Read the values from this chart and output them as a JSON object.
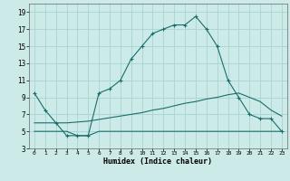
{
  "xlabel": "Humidex (Indice chaleur)",
  "bg_color": "#cceae8",
  "grid_color": "#a8d4d2",
  "line_color": "#1a6e6a",
  "main_x": [
    0,
    1,
    2,
    3,
    4,
    5,
    6,
    7,
    8,
    9,
    10,
    11,
    12,
    13,
    14,
    15,
    16,
    17,
    18,
    19,
    20,
    21,
    22,
    23
  ],
  "main_y": [
    9.5,
    7.5,
    6.0,
    4.5,
    4.5,
    4.5,
    9.5,
    10.0,
    11.0,
    13.5,
    15.0,
    16.5,
    17.0,
    17.5,
    17.5,
    18.5,
    17.0,
    15.0,
    11.0,
    9.0,
    7.0,
    6.5,
    6.5,
    5.0
  ],
  "upper_flat_x": [
    0,
    1,
    2,
    3,
    4,
    5,
    6,
    7,
    8,
    9,
    10,
    11,
    12,
    13,
    14,
    15,
    16,
    17,
    18,
    19,
    20,
    21,
    22,
    23
  ],
  "upper_flat_y": [
    6.0,
    6.0,
    6.0,
    6.0,
    6.1,
    6.2,
    6.4,
    6.6,
    6.8,
    7.0,
    7.2,
    7.5,
    7.7,
    8.0,
    8.3,
    8.5,
    8.8,
    9.0,
    9.3,
    9.5,
    9.0,
    8.5,
    7.5,
    6.8
  ],
  "lower_flat_x": [
    0,
    1,
    2,
    3,
    4,
    5,
    6,
    7,
    8,
    9,
    10,
    11,
    12,
    13,
    14,
    15,
    16,
    17,
    18,
    19,
    20,
    21,
    22,
    23
  ],
  "lower_flat_y": [
    5.0,
    5.0,
    5.0,
    5.0,
    4.5,
    4.5,
    5.0,
    5.0,
    5.0,
    5.0,
    5.0,
    5.0,
    5.0,
    5.0,
    5.0,
    5.0,
    5.0,
    5.0,
    5.0,
    5.0,
    5.0,
    5.0,
    5.0,
    5.0
  ],
  "xlim": [
    -0.5,
    23.5
  ],
  "ylim": [
    3,
    20
  ],
  "yticks": [
    3,
    5,
    7,
    9,
    11,
    13,
    15,
    17,
    19
  ],
  "xticks": [
    0,
    1,
    2,
    3,
    4,
    5,
    6,
    7,
    8,
    9,
    10,
    11,
    12,
    13,
    14,
    15,
    16,
    17,
    18,
    19,
    20,
    21,
    22,
    23
  ]
}
